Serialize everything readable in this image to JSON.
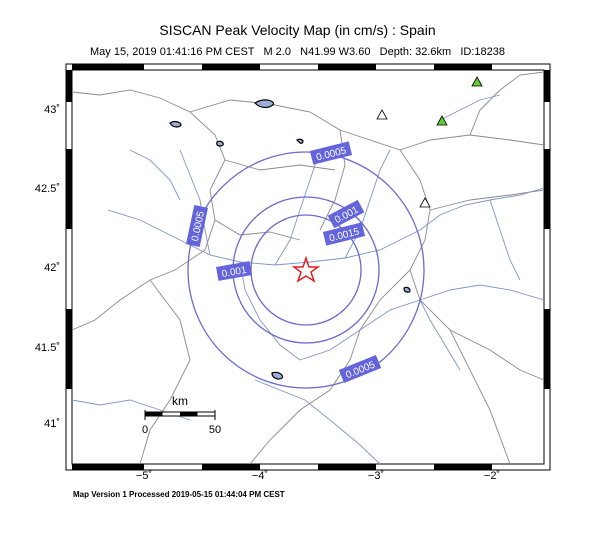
{
  "header": {
    "title": "SISCAN Peak Velocity Map (in cm/s) : Spain",
    "subtitle": "May 15, 2019 01:41:16 PM CEST   M 2.0   N41.99 W3.60   Depth: 32.6km   ID:18238"
  },
  "footer": {
    "text": "Map Version 1 Processed 2019-05-15 01:44:04 PM CEST"
  },
  "axes": {
    "latitude_labels": [
      "43˚",
      "42.5˚",
      "42˚",
      "41.5˚",
      "41˚"
    ],
    "longitude_labels": [
      "−5˚",
      "−4˚",
      "−3˚",
      "−2˚"
    ]
  },
  "scale_bar": {
    "unit": "km",
    "start": "0",
    "end": "50"
  },
  "contours": [
    {
      "label": "0.0005",
      "color": "#6a6ad0"
    },
    {
      "label": "0.001",
      "color": "#6a6ad0"
    },
    {
      "label": "0.0015",
      "color": "#6a6ad0"
    }
  ],
  "colors": {
    "contour": "#6a6ad0",
    "label_bg": "#6464dc",
    "river": "#7f95c8",
    "border": "#8a8a8a",
    "epicenter": "#e02020",
    "station_green": "#66cc33"
  }
}
